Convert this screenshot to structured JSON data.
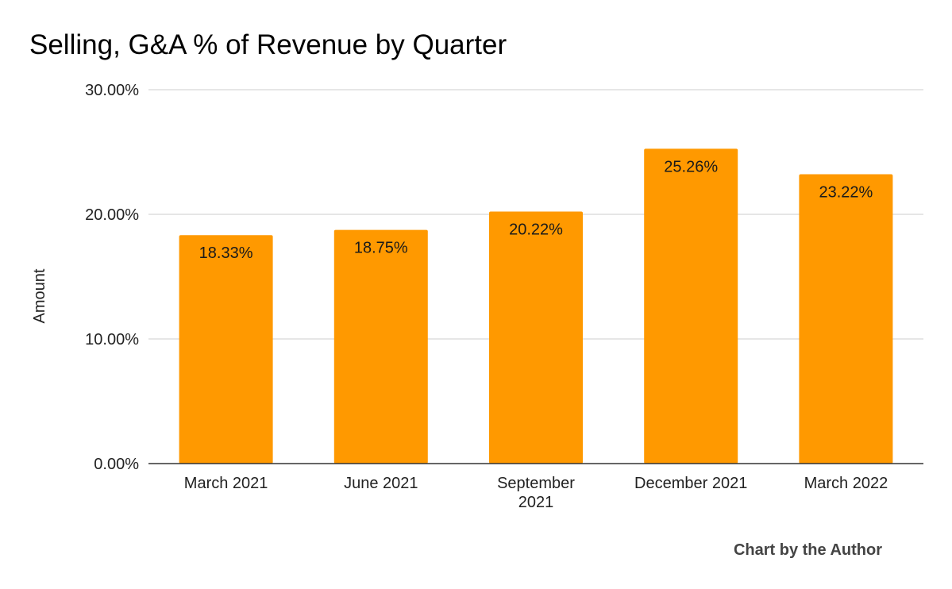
{
  "chart_data": {
    "type": "bar",
    "title": "Selling, G&A % of Revenue by Quarter",
    "xlabel": "",
    "ylabel": "Amount",
    "categories": [
      [
        "March 2021"
      ],
      [
        "June 2021"
      ],
      [
        "September",
        "2021"
      ],
      [
        "December 2021"
      ],
      [
        "March 2022"
      ]
    ],
    "values": [
      18.33,
      18.75,
      20.22,
      25.26,
      23.22
    ],
    "data_labels": [
      "18.33%",
      "18.75%",
      "20.22%",
      "25.26%",
      "23.22%"
    ],
    "ylim": [
      0,
      30
    ],
    "yticks": [
      0,
      10,
      20,
      30
    ],
    "ytick_labels": [
      "0.00%",
      "10.00%",
      "20.00%",
      "30.00%"
    ],
    "grid": true,
    "legend": "none",
    "colors": {
      "bar": "#FF9900",
      "grid": "#CCCCCC",
      "baseline": "#333333"
    }
  },
  "footer": {
    "credit": "Chart by the Author"
  }
}
